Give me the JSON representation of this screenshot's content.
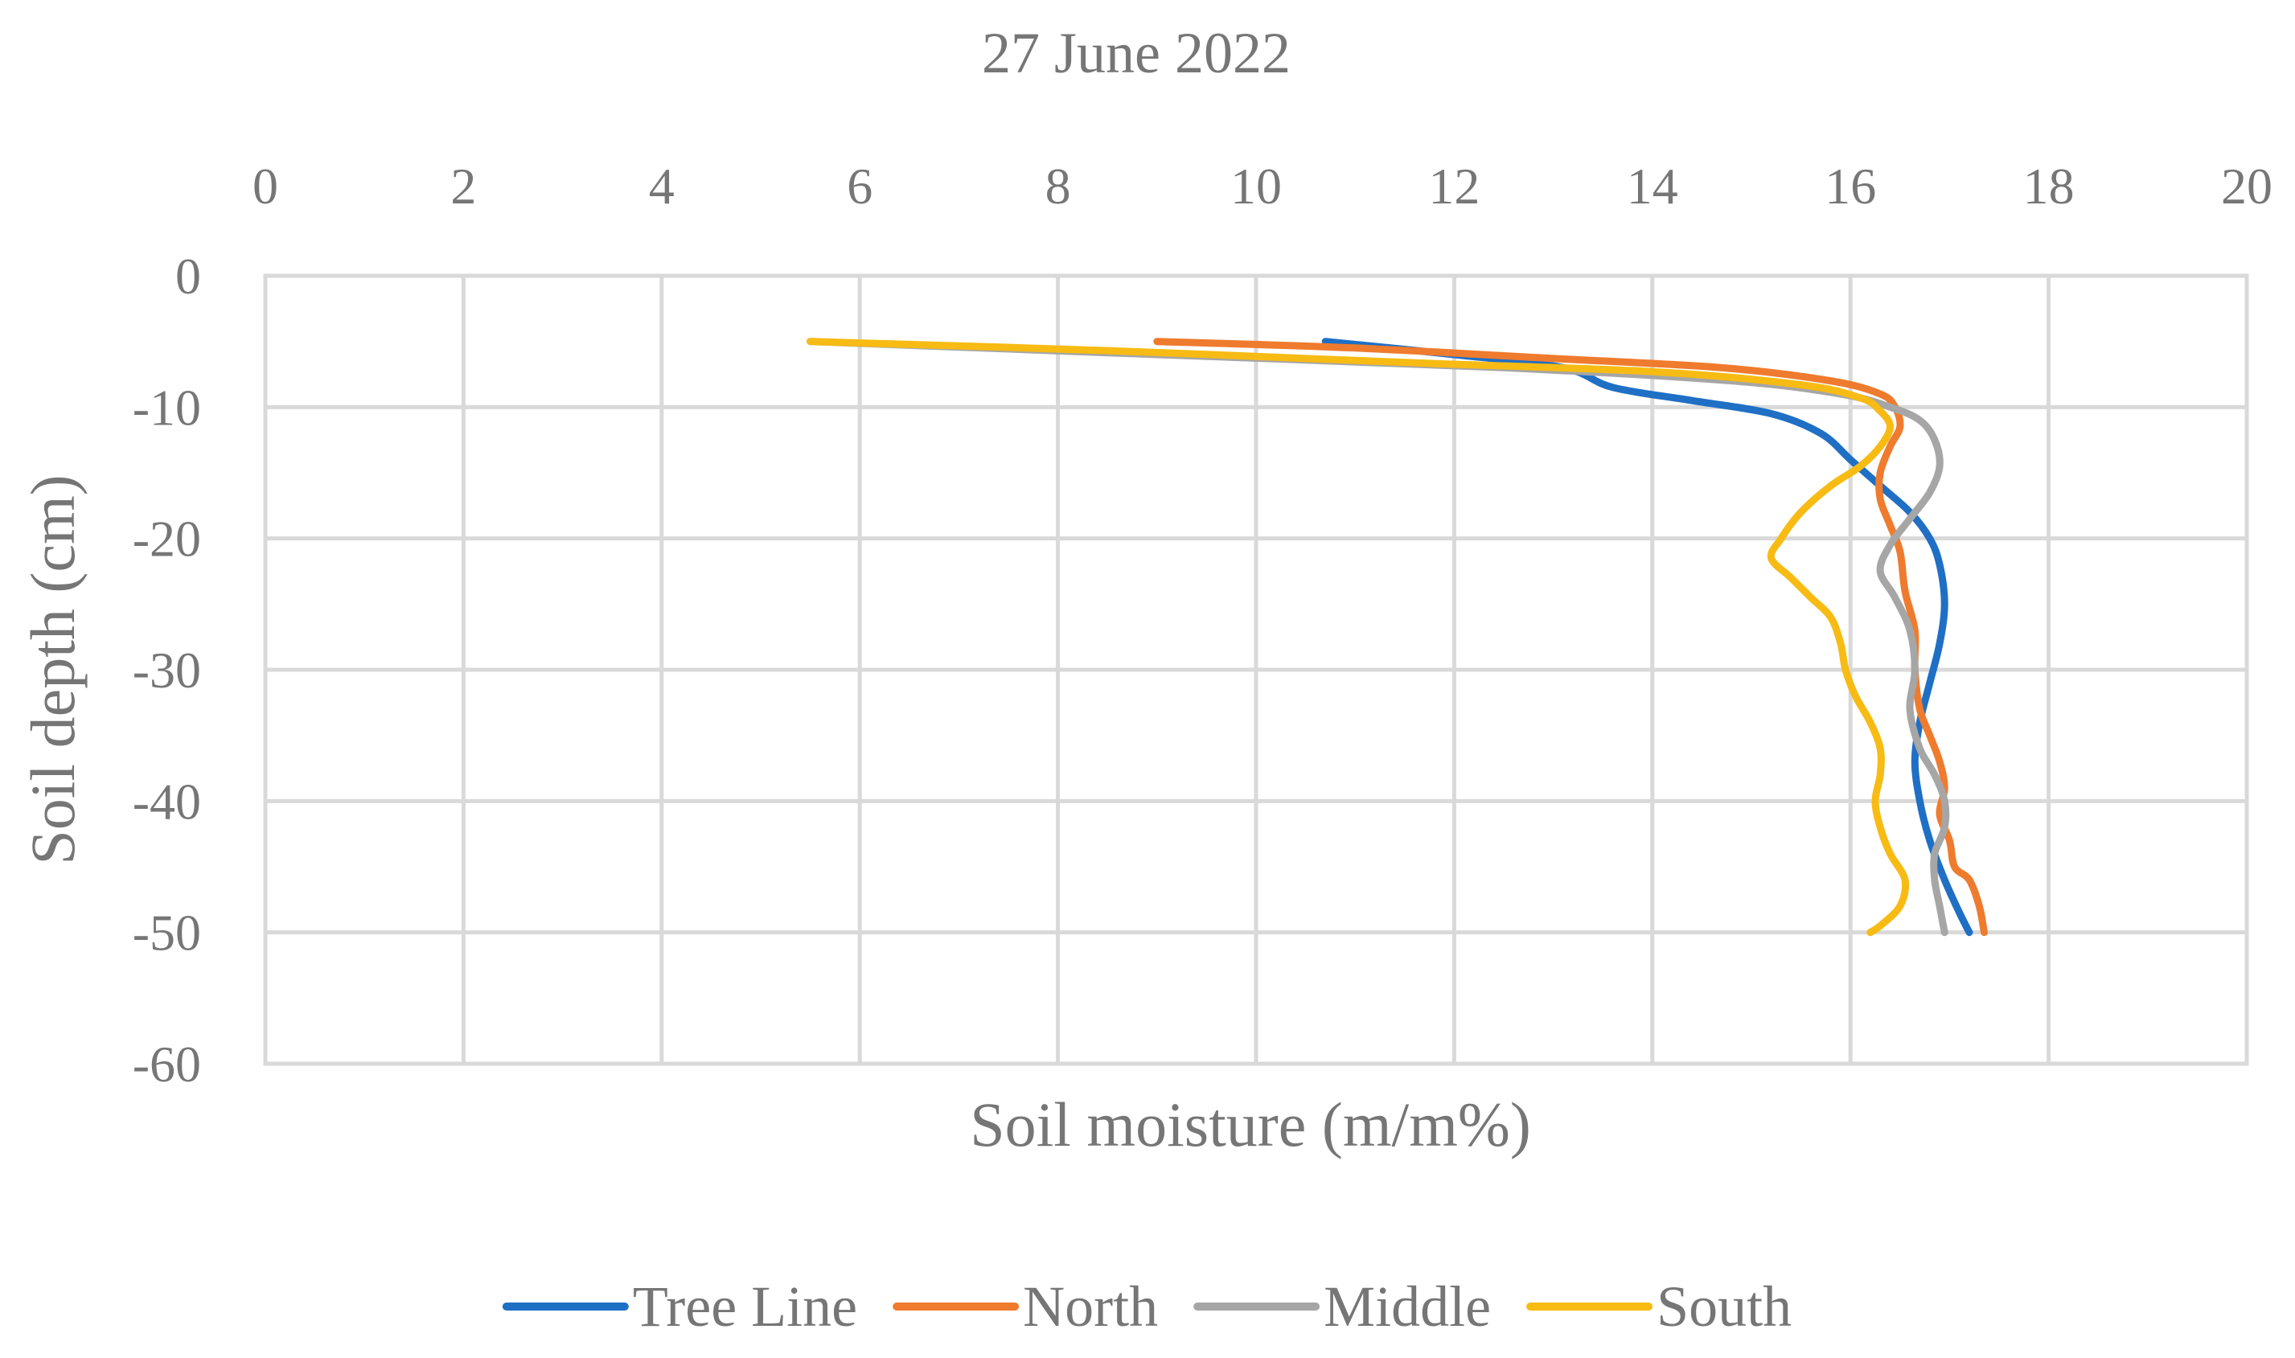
{
  "chart_data": {
    "type": "line",
    "title": "27 June 2022",
    "xlabel": "Soil moisture (m/m%)",
    "ylabel": "Soil depth (cm)",
    "xlim": [
      0,
      20
    ],
    "ylim": [
      -60,
      0
    ],
    "x_ticks": [
      "0",
      "2",
      "4",
      "6",
      "8",
      "10",
      "12",
      "14",
      "16",
      "18",
      "20"
    ],
    "y_ticks": [
      "0",
      "-10",
      "-20",
      "-30",
      "-40",
      "-50",
      "-60"
    ],
    "x_axis_position": "top",
    "grid": true,
    "legend_position": "bottom",
    "series": [
      {
        "name": "Tree Line",
        "color": "#1f6fc5",
        "points": [
          [
            10.7,
            -5
          ],
          [
            12.0,
            -6
          ],
          [
            13.1,
            -7
          ],
          [
            13.6,
            -8.5
          ],
          [
            14.4,
            -9.5
          ],
          [
            15.2,
            -10.5
          ],
          [
            15.7,
            -12
          ],
          [
            16.0,
            -14
          ],
          [
            16.3,
            -16
          ],
          [
            16.6,
            -18
          ],
          [
            16.8,
            -20
          ],
          [
            16.9,
            -22
          ],
          [
            16.95,
            -25
          ],
          [
            16.9,
            -28
          ],
          [
            16.8,
            -31
          ],
          [
            16.7,
            -34
          ],
          [
            16.65,
            -37
          ],
          [
            16.7,
            -40
          ],
          [
            16.8,
            -43
          ],
          [
            16.95,
            -46
          ],
          [
            17.1,
            -48.5
          ],
          [
            17.2,
            -50
          ]
        ]
      },
      {
        "name": "North",
        "color": "#ef7b2e",
        "points": [
          [
            9.0,
            -5
          ],
          [
            11.0,
            -5.5
          ],
          [
            13.0,
            -6.3
          ],
          [
            14.7,
            -7
          ],
          [
            15.8,
            -8
          ],
          [
            16.3,
            -9
          ],
          [
            16.45,
            -10
          ],
          [
            16.5,
            -11.5
          ],
          [
            16.4,
            -13
          ],
          [
            16.3,
            -15
          ],
          [
            16.3,
            -17
          ],
          [
            16.4,
            -19
          ],
          [
            16.5,
            -21
          ],
          [
            16.55,
            -24
          ],
          [
            16.65,
            -27
          ],
          [
            16.65,
            -30
          ],
          [
            16.7,
            -33
          ],
          [
            16.8,
            -35
          ],
          [
            16.9,
            -37
          ],
          [
            16.95,
            -39
          ],
          [
            16.9,
            -41
          ],
          [
            17.0,
            -43
          ],
          [
            17.05,
            -45
          ],
          [
            17.2,
            -46
          ],
          [
            17.3,
            -48
          ],
          [
            17.35,
            -50
          ]
        ]
      },
      {
        "name": "Middle",
        "color": "#a6a6a6",
        "points": [
          [
            5.5,
            -5
          ],
          [
            9.0,
            -6
          ],
          [
            12.5,
            -7
          ],
          [
            14.8,
            -8
          ],
          [
            15.9,
            -9
          ],
          [
            16.4,
            -10
          ],
          [
            16.7,
            -11
          ],
          [
            16.85,
            -12.5
          ],
          [
            16.9,
            -14.5
          ],
          [
            16.8,
            -16.5
          ],
          [
            16.6,
            -18.5
          ],
          [
            16.4,
            -20.5
          ],
          [
            16.3,
            -22.5
          ],
          [
            16.45,
            -24.5
          ],
          [
            16.6,
            -27
          ],
          [
            16.65,
            -30
          ],
          [
            16.6,
            -33
          ],
          [
            16.7,
            -36
          ],
          [
            16.85,
            -38
          ],
          [
            16.95,
            -40
          ],
          [
            16.95,
            -42
          ],
          [
            16.85,
            -44
          ],
          [
            16.85,
            -46
          ],
          [
            16.9,
            -48
          ],
          [
            16.95,
            -50
          ]
        ]
      },
      {
        "name": "South",
        "color": "#f7bb13",
        "points": [
          [
            5.5,
            -5
          ],
          [
            8.5,
            -5.7
          ],
          [
            11.5,
            -6.6
          ],
          [
            14.0,
            -7.3
          ],
          [
            15.5,
            -8.3
          ],
          [
            16.1,
            -9.3
          ],
          [
            16.3,
            -10.3
          ],
          [
            16.4,
            -11.5
          ],
          [
            16.3,
            -13
          ],
          [
            16.1,
            -14.5
          ],
          [
            15.8,
            -16
          ],
          [
            15.5,
            -18
          ],
          [
            15.3,
            -20
          ],
          [
            15.2,
            -21.5
          ],
          [
            15.4,
            -23
          ],
          [
            15.6,
            -24.5
          ],
          [
            15.8,
            -26
          ],
          [
            15.9,
            -28
          ],
          [
            15.95,
            -30
          ],
          [
            16.05,
            -32
          ],
          [
            16.2,
            -34
          ],
          [
            16.3,
            -36
          ],
          [
            16.3,
            -38
          ],
          [
            16.25,
            -40
          ],
          [
            16.3,
            -42
          ],
          [
            16.4,
            -44
          ],
          [
            16.55,
            -46
          ],
          [
            16.5,
            -48
          ],
          [
            16.3,
            -49.5
          ],
          [
            16.2,
            -50
          ]
        ]
      }
    ]
  }
}
